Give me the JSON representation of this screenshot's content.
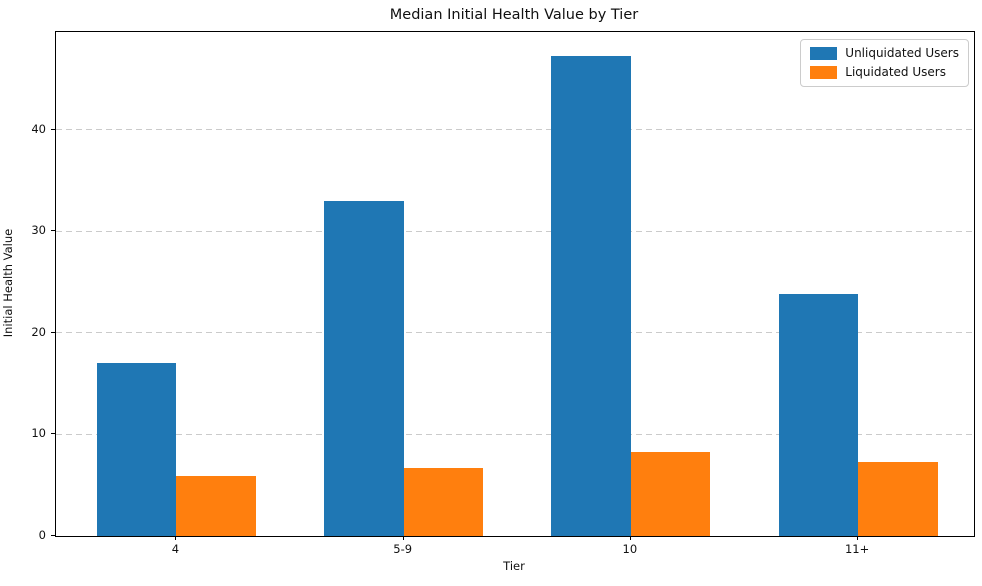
{
  "chart_data": {
    "type": "bar",
    "title": "Median Initial Health Value by Tier",
    "xlabel": "Tier",
    "ylabel": "Initial Health Value",
    "categories": [
      "4",
      "5-9",
      "10",
      "11+"
    ],
    "series": [
      {
        "name": "Unliquidated Users",
        "color": "#1f77b4",
        "values": [
          17.0,
          33.0,
          47.2,
          23.8
        ]
      },
      {
        "name": "Liquidated Users",
        "color": "#ff7f0e",
        "values": [
          5.9,
          6.7,
          8.3,
          7.3
        ]
      }
    ],
    "ylim": [
      0,
      49.6
    ],
    "yticks": [
      0,
      10,
      20,
      30,
      40
    ],
    "grid": {
      "axis": "y",
      "style": "dashed",
      "color": "#cbcbcb"
    },
    "legend_position": "upper right",
    "bar_width_ratio": 0.35
  }
}
